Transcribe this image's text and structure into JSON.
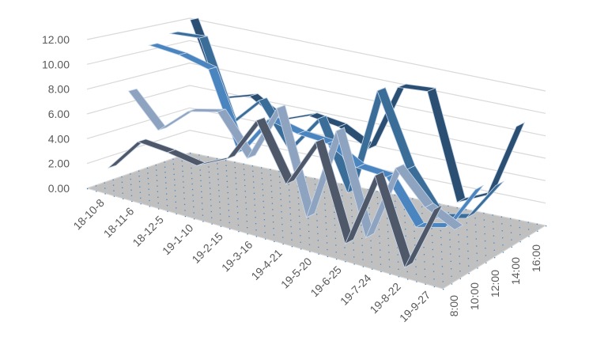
{
  "chart_data": {
    "type": "line",
    "subtype": "3d-line",
    "title": "",
    "xlabel": "",
    "ylabel": "",
    "ylim": [
      0,
      12
    ],
    "y_ticks": [
      "0.00",
      "2.00",
      "4.00",
      "6.00",
      "8.00",
      "10.00",
      "12.00"
    ],
    "grid": true,
    "categories": [
      "18-10-8",
      "18-11-6",
      "18-12-5",
      "19-1-10",
      "19-2-15",
      "19-3-16",
      "19-4-21",
      "19-5-20",
      "19-6-25",
      "19-7-24",
      "19-8-22",
      "19-9-27"
    ],
    "series": [
      {
        "name": "8:00",
        "color": "#4f5869",
        "values": [
          1.8,
          4.6,
          4.4,
          4.0,
          5.2,
          9.0,
          4.5,
          8.6,
          1.0,
          7.2,
          0.4,
          5.8
        ]
      },
      {
        "name": "10:00",
        "color": "#8ea3bf",
        "values": [
          7.6,
          5.0,
          7.2,
          7.8,
          4.6,
          9.4,
          1.0,
          8.8,
          0.6,
          7.0,
          4.4,
          3.2
        ]
      },
      {
        "name": "12:00",
        "color": "#4a85bf",
        "values": [
          11.0,
          10.8,
          10.2,
          3.8,
          7.2,
          6.6,
          6.4,
          5.0,
          4.8,
          1.2,
          1.8,
          5.6
        ]
      },
      {
        "name": "14:00",
        "color": "#3b6d99",
        "values": [
          11.6,
          11.8,
          5.0,
          7.6,
          4.0,
          7.2,
          1.4,
          10.8,
          4.6,
          1.0,
          1.6,
          5.0
        ]
      },
      {
        "name": "16:00",
        "color": "#2b4f73",
        "values": [
          12.4,
          6.0,
          6.8,
          5.2,
          6.2,
          5.8,
          4.4,
          10.4,
          10.6,
          1.4,
          2.6,
          9.2
        ]
      }
    ],
    "floor_color": "#c0c0c0",
    "legend": "none"
  }
}
